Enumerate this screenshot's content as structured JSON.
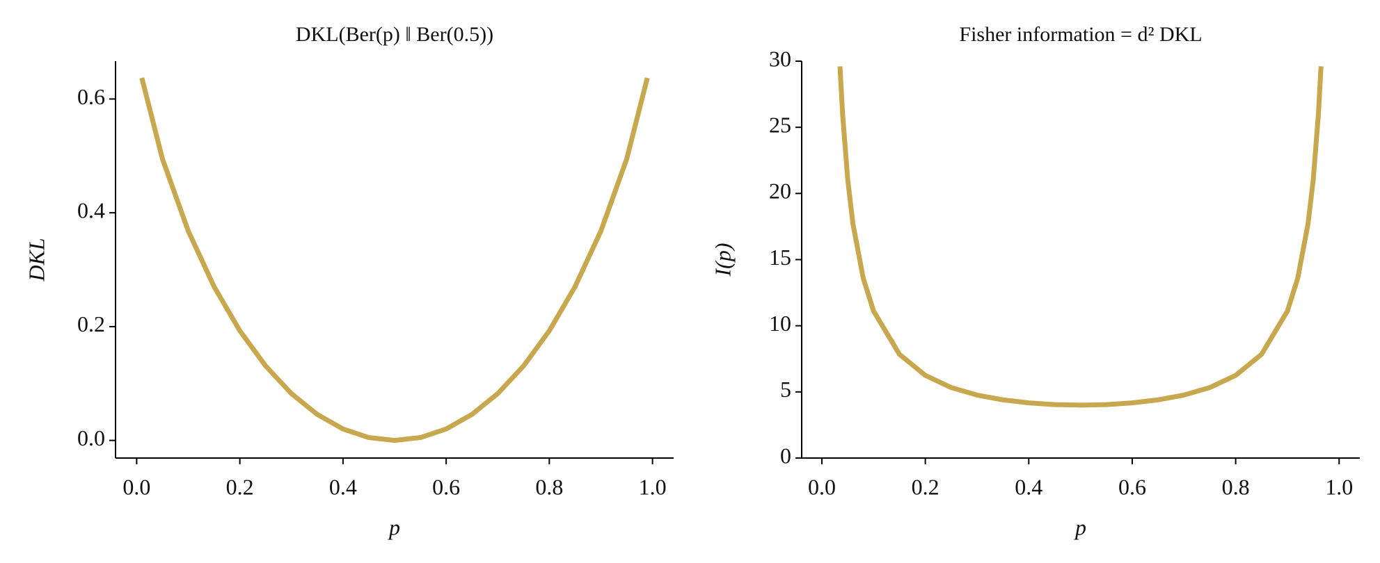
{
  "chart_data": [
    {
      "type": "line",
      "title": "DKL(Ber(p) ‖ Ber(0.5))",
      "x_label": "p",
      "y_label": "DKL",
      "x": [
        0.01,
        0.05,
        0.1,
        0.15,
        0.2,
        0.25,
        0.3,
        0.35,
        0.4,
        0.45,
        0.5,
        0.55,
        0.6,
        0.65,
        0.7,
        0.75,
        0.8,
        0.85,
        0.9,
        0.95,
        0.99
      ],
      "series": [
        {
          "color": "#c8a84e",
          "values": [
            0.6371,
            0.4946,
            0.3681,
            0.2704,
            0.1927,
            0.1308,
            0.0823,
            0.0457,
            0.0201,
            0.005,
            0,
            0.005,
            0.0201,
            0.0457,
            0.0823,
            0.1308,
            0.1927,
            0.2704,
            0.3681,
            0.4946,
            0.6371
          ]
        }
      ],
      "xlim": [
        -0.041,
        1.041
      ],
      "ylim": [
        -0.031,
        0.6665
      ],
      "xticks": [
        {
          "value": 0,
          "label": "0.0"
        },
        0.2,
        0.4,
        0.6,
        0.8,
        {
          "value": 1,
          "label": "1.0"
        }
      ],
      "yticks": [
        {
          "value": 0,
          "label": "0.0"
        },
        0.2,
        0.4,
        0.6
      ]
    },
    {
      "type": "line",
      "title": "Fisher information = d² DKL",
      "x_label": "p",
      "y_label": "I(p)",
      "x": [
        0.035,
        0.04,
        0.05,
        0.06,
        0.08,
        0.1,
        0.15,
        0.2,
        0.25,
        0.3,
        0.35,
        0.4,
        0.45,
        0.5,
        0.55,
        0.6,
        0.65,
        0.7,
        0.75,
        0.8,
        0.85,
        0.9,
        0.92,
        0.94,
        0.95,
        0.96,
        0.965
      ],
      "series": [
        {
          "color": "#c8a84e",
          "values": [
            29.61,
            26.04,
            21.05,
            17.73,
            13.59,
            11.11,
            7.84,
            6.25,
            5.33,
            4.76,
            4.4,
            4.17,
            4.04,
            4,
            4.04,
            4.17,
            4.4,
            4.76,
            5.33,
            6.25,
            7.84,
            11.11,
            13.59,
            17.73,
            21.05,
            26.04,
            29.61
          ]
        }
      ],
      "xlim": [
        -0.039,
        1.04
      ],
      "ylim": [
        0,
        30
      ],
      "xticks": [
        {
          "value": 0,
          "label": "0.0"
        },
        0.2,
        0.4,
        0.6,
        0.8,
        {
          "value": 1,
          "label": "1.0"
        }
      ],
      "yticks": [
        0,
        5,
        10,
        15,
        20,
        25,
        30
      ]
    }
  ]
}
